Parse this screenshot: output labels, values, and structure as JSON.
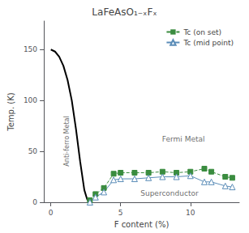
{
  "chart_data": {
    "type": "line",
    "title": "LaFeAsO₁₋ₓFₓ",
    "xlabel": "F content (%)",
    "ylabel": "Temp. (K)",
    "xlim": [
      -0.5,
      13.5
    ],
    "ylim": [
      0,
      178
    ],
    "xticks": [
      0,
      5,
      10
    ],
    "yticks": [
      0,
      50,
      100,
      150
    ],
    "grid": false,
    "legend": "upper right",
    "series": [
      {
        "color": "#000000",
        "line_style": "solid",
        "marker": "none",
        "x": [
          0,
          0.3,
          0.6,
          0.9,
          1.2,
          1.5,
          1.8,
          2.1,
          2.4,
          2.6,
          2.7,
          2.8
        ],
        "values": [
          150,
          148,
          143,
          134,
          120,
          100,
          72,
          40,
          12,
          3,
          1,
          0
        ]
      },
      {
        "name": "Tc (on set)",
        "color": "#3a8c3f",
        "line_style": "dashed",
        "marker": "square",
        "x": [
          2.8,
          3.2,
          3.8,
          4.5,
          5.0,
          6.0,
          7.0,
          8.0,
          9.0,
          10.0,
          11.0,
          11.5,
          12.5,
          13.0
        ],
        "values": [
          2,
          8,
          14,
          28,
          29,
          29,
          29,
          30,
          29,
          30,
          33,
          30,
          25,
          24
        ]
      },
      {
        "name": "Tc (mid point)",
        "color": "#5b8db8",
        "line_style": "solid",
        "marker": "triangle-open",
        "x": [
          2.8,
          3.2,
          3.8,
          4.5,
          5.0,
          6.0,
          7.0,
          8.0,
          9.0,
          10.0,
          11.0,
          11.5,
          12.5,
          13.0
        ],
        "values": [
          0,
          5,
          10,
          22,
          23,
          23,
          24,
          25,
          25,
          26,
          20,
          20,
          16,
          15
        ]
      }
    ],
    "annotations": [
      {
        "text": "Anti-ferro Metal",
        "x": 1.15,
        "y": 60
      },
      {
        "text": "Fermi Metal",
        "x": 9.5,
        "y": 62
      },
      {
        "text": "Superconductor",
        "x": 8.5,
        "y": 9
      }
    ]
  }
}
